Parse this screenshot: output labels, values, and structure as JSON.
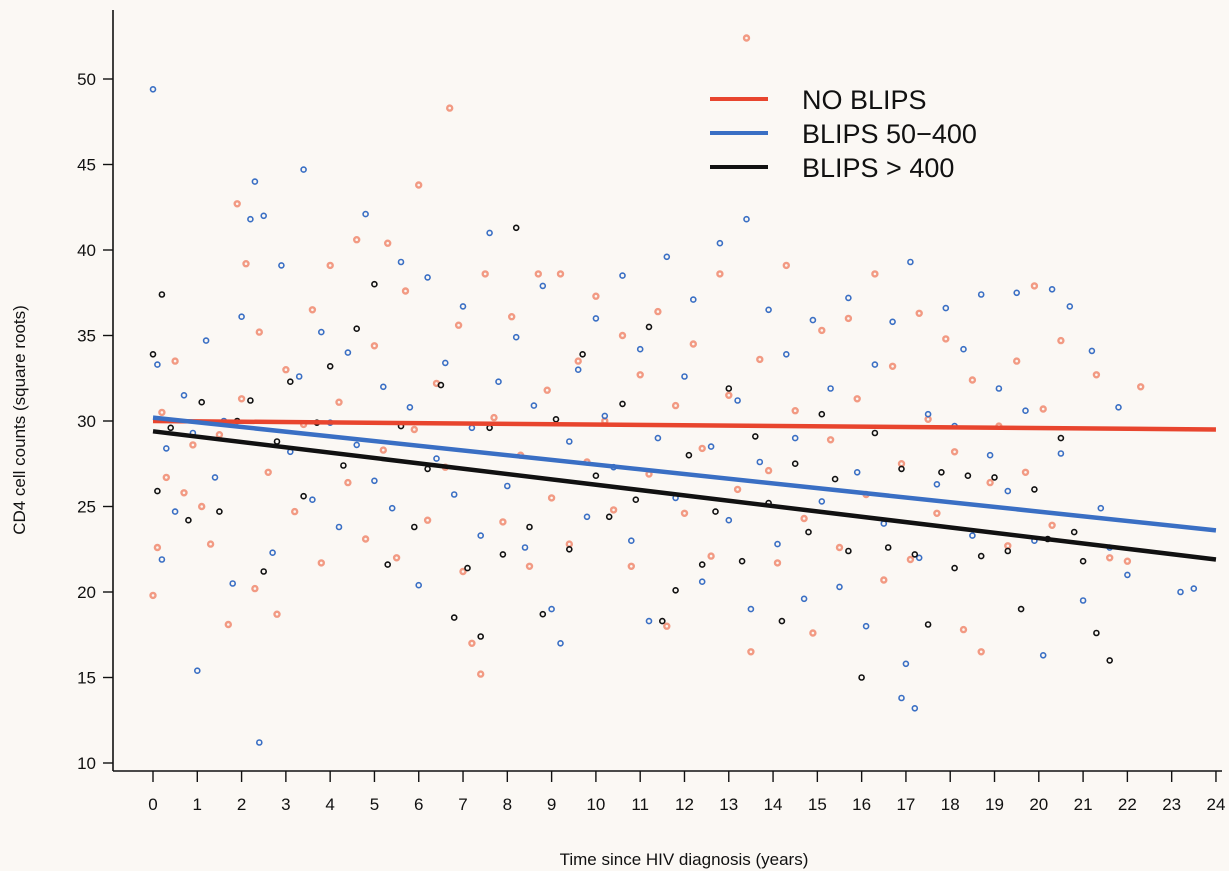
{
  "chart_data": {
    "type": "scatter",
    "title": "",
    "xlabel": "Time since HIV diagnosis (years)",
    "ylabel": "CD4 cell counts (square roots)",
    "xlim": [
      -0.5,
      24
    ],
    "ylim": [
      10,
      53
    ],
    "x_ticks": [
      0,
      1,
      2,
      3,
      4,
      5,
      6,
      7,
      8,
      9,
      10,
      11,
      12,
      13,
      14,
      15,
      16,
      17,
      18,
      19,
      20,
      21,
      22,
      23,
      24
    ],
    "y_ticks": [
      10,
      15,
      20,
      25,
      30,
      35,
      40,
      45,
      50
    ],
    "grid": false,
    "legend_position": "top-right",
    "series": [
      {
        "name": "NO BLIPS",
        "color": "#e8452e",
        "point_color": "#f08a6e",
        "trend": {
          "x": [
            0,
            24
          ],
          "y": [
            30.0,
            29.5
          ]
        },
        "points": [
          [
            0,
            19.8
          ],
          [
            0.1,
            22.6
          ],
          [
            0.2,
            30.5
          ],
          [
            0.3,
            26.7
          ],
          [
            0.5,
            33.5
          ],
          [
            0.7,
            25.8
          ],
          [
            0.9,
            28.6
          ],
          [
            1.1,
            25.0
          ],
          [
            1.3,
            22.8
          ],
          [
            1.5,
            29.2
          ],
          [
            1.7,
            18.1
          ],
          [
            1.9,
            42.7
          ],
          [
            2.0,
            31.3
          ],
          [
            2.1,
            39.2
          ],
          [
            2.3,
            20.2
          ],
          [
            2.4,
            35.2
          ],
          [
            2.6,
            27.0
          ],
          [
            2.8,
            18.7
          ],
          [
            3.0,
            33.0
          ],
          [
            3.2,
            24.7
          ],
          [
            3.4,
            29.8
          ],
          [
            3.6,
            36.5
          ],
          [
            3.8,
            21.7
          ],
          [
            4.0,
            39.1
          ],
          [
            4.2,
            31.1
          ],
          [
            4.4,
            26.4
          ],
          [
            4.6,
            40.6
          ],
          [
            4.8,
            23.1
          ],
          [
            5.0,
            34.4
          ],
          [
            5.2,
            28.3
          ],
          [
            5.3,
            40.4
          ],
          [
            5.5,
            22.0
          ],
          [
            5.7,
            37.6
          ],
          [
            5.9,
            29.5
          ],
          [
            6.0,
            43.8
          ],
          [
            6.2,
            24.2
          ],
          [
            6.4,
            32.2
          ],
          [
            6.6,
            27.3
          ],
          [
            6.7,
            48.3
          ],
          [
            6.9,
            35.6
          ],
          [
            7.0,
            21.2
          ],
          [
            7.2,
            17.0
          ],
          [
            7.4,
            15.2
          ],
          [
            7.5,
            38.6
          ],
          [
            7.7,
            30.2
          ],
          [
            7.9,
            24.1
          ],
          [
            8.1,
            36.1
          ],
          [
            8.3,
            28.0
          ],
          [
            8.5,
            21.5
          ],
          [
            8.7,
            38.6
          ],
          [
            8.9,
            31.8
          ],
          [
            9.0,
            25.5
          ],
          [
            9.2,
            38.6
          ],
          [
            9.4,
            22.8
          ],
          [
            9.6,
            33.5
          ],
          [
            9.8,
            27.6
          ],
          [
            10.0,
            37.3
          ],
          [
            10.2,
            30.0
          ],
          [
            10.4,
            24.8
          ],
          [
            10.6,
            35.0
          ],
          [
            10.8,
            21.5
          ],
          [
            11.0,
            32.7
          ],
          [
            11.2,
            26.9
          ],
          [
            11.4,
            36.4
          ],
          [
            11.6,
            18.0
          ],
          [
            11.8,
            30.9
          ],
          [
            12.0,
            24.6
          ],
          [
            12.2,
            34.5
          ],
          [
            12.4,
            28.4
          ],
          [
            12.6,
            22.1
          ],
          [
            12.8,
            38.6
          ],
          [
            13.0,
            31.5
          ],
          [
            13.2,
            26.0
          ],
          [
            13.4,
            52.4
          ],
          [
            13.5,
            16.5
          ],
          [
            13.7,
            33.6
          ],
          [
            13.9,
            27.1
          ],
          [
            14.1,
            21.7
          ],
          [
            14.3,
            39.1
          ],
          [
            14.5,
            30.6
          ],
          [
            14.7,
            24.3
          ],
          [
            14.9,
            17.6
          ],
          [
            15.1,
            35.3
          ],
          [
            15.3,
            28.9
          ],
          [
            15.5,
            22.6
          ],
          [
            15.7,
            36.0
          ],
          [
            15.9,
            31.3
          ],
          [
            16.1,
            25.7
          ],
          [
            16.3,
            38.6
          ],
          [
            16.5,
            20.7
          ],
          [
            16.7,
            33.2
          ],
          [
            16.9,
            27.5
          ],
          [
            17.1,
            21.9
          ],
          [
            17.3,
            36.3
          ],
          [
            17.5,
            30.1
          ],
          [
            17.7,
            24.6
          ],
          [
            17.9,
            34.8
          ],
          [
            18.1,
            28.2
          ],
          [
            18.3,
            17.8
          ],
          [
            18.5,
            32.4
          ],
          [
            18.7,
            16.5
          ],
          [
            18.9,
            26.4
          ],
          [
            19.1,
            29.7
          ],
          [
            19.3,
            22.7
          ],
          [
            19.5,
            33.5
          ],
          [
            19.7,
            27.0
          ],
          [
            19.9,
            37.9
          ],
          [
            20.1,
            30.7
          ],
          [
            20.3,
            23.9
          ],
          [
            20.5,
            34.7
          ],
          [
            21.3,
            32.7
          ],
          [
            21.6,
            22.0
          ],
          [
            22.0,
            21.8
          ],
          [
            22.3,
            32.0
          ]
        ]
      },
      {
        "name": "BLIPS 50−400",
        "color": "#3a6fc4",
        "point_color": "#3a6fc4",
        "trend": {
          "x": [
            0,
            24
          ],
          "y": [
            30.2,
            23.6
          ]
        },
        "points": [
          [
            0,
            49.4
          ],
          [
            0.1,
            33.3
          ],
          [
            0.2,
            21.9
          ],
          [
            0.3,
            28.4
          ],
          [
            0.5,
            24.7
          ],
          [
            0.7,
            31.5
          ],
          [
            0.9,
            29.3
          ],
          [
            1.0,
            15.4
          ],
          [
            1.2,
            34.7
          ],
          [
            1.4,
            26.7
          ],
          [
            1.6,
            30.0
          ],
          [
            1.8,
            20.5
          ],
          [
            2.0,
            36.1
          ],
          [
            2.2,
            41.8
          ],
          [
            2.3,
            44.0
          ],
          [
            2.4,
            11.2
          ],
          [
            2.5,
            42.0
          ],
          [
            2.7,
            22.3
          ],
          [
            2.9,
            39.1
          ],
          [
            3.1,
            28.2
          ],
          [
            3.3,
            32.6
          ],
          [
            3.4,
            44.7
          ],
          [
            3.6,
            25.4
          ],
          [
            3.8,
            35.2
          ],
          [
            4.0,
            29.9
          ],
          [
            4.2,
            23.8
          ],
          [
            4.4,
            34.0
          ],
          [
            4.6,
            28.6
          ],
          [
            4.8,
            42.1
          ],
          [
            5.0,
            26.5
          ],
          [
            5.2,
            32.0
          ],
          [
            5.4,
            24.9
          ],
          [
            5.6,
            39.3
          ],
          [
            5.8,
            30.8
          ],
          [
            6.0,
            20.4
          ],
          [
            6.2,
            38.4
          ],
          [
            6.4,
            27.8
          ],
          [
            6.6,
            33.4
          ],
          [
            6.8,
            25.7
          ],
          [
            7.0,
            36.7
          ],
          [
            7.2,
            29.6
          ],
          [
            7.4,
            23.3
          ],
          [
            7.6,
            41.0
          ],
          [
            7.8,
            32.3
          ],
          [
            8.0,
            26.2
          ],
          [
            8.2,
            34.9
          ],
          [
            8.4,
            22.6
          ],
          [
            8.6,
            30.9
          ],
          [
            8.8,
            37.9
          ],
          [
            9.0,
            19.0
          ],
          [
            9.2,
            17.0
          ],
          [
            9.4,
            28.8
          ],
          [
            9.6,
            33.0
          ],
          [
            9.8,
            24.4
          ],
          [
            10.0,
            36.0
          ],
          [
            10.2,
            30.3
          ],
          [
            10.4,
            27.3
          ],
          [
            10.6,
            38.5
          ],
          [
            10.8,
            23.0
          ],
          [
            11.0,
            34.2
          ],
          [
            11.2,
            18.3
          ],
          [
            11.4,
            29.0
          ],
          [
            11.6,
            39.6
          ],
          [
            11.8,
            25.5
          ],
          [
            12.0,
            32.6
          ],
          [
            12.2,
            37.1
          ],
          [
            12.4,
            20.6
          ],
          [
            12.6,
            28.5
          ],
          [
            12.8,
            40.4
          ],
          [
            13.0,
            24.2
          ],
          [
            13.2,
            31.2
          ],
          [
            13.4,
            41.8
          ],
          [
            13.5,
            19.0
          ],
          [
            13.7,
            27.6
          ],
          [
            13.9,
            36.5
          ],
          [
            14.1,
            22.8
          ],
          [
            14.3,
            33.9
          ],
          [
            14.5,
            29.0
          ],
          [
            14.7,
            19.6
          ],
          [
            14.9,
            35.9
          ],
          [
            15.1,
            25.3
          ],
          [
            15.3,
            31.9
          ],
          [
            15.5,
            20.3
          ],
          [
            15.7,
            37.2
          ],
          [
            15.9,
            27.0
          ],
          [
            16.1,
            18.0
          ],
          [
            16.3,
            33.3
          ],
          [
            16.5,
            24.0
          ],
          [
            16.7,
            35.8
          ],
          [
            16.9,
            13.8
          ],
          [
            17.0,
            15.8
          ],
          [
            17.1,
            39.3
          ],
          [
            17.2,
            13.2
          ],
          [
            17.3,
            22.0
          ],
          [
            17.5,
            30.4
          ],
          [
            17.7,
            26.3
          ],
          [
            17.9,
            36.6
          ],
          [
            18.1,
            29.7
          ],
          [
            18.3,
            34.2
          ],
          [
            18.5,
            23.3
          ],
          [
            18.7,
            37.4
          ],
          [
            18.9,
            28.0
          ],
          [
            19.1,
            31.9
          ],
          [
            19.3,
            25.9
          ],
          [
            19.5,
            37.5
          ],
          [
            19.7,
            30.6
          ],
          [
            19.9,
            23.0
          ],
          [
            20.1,
            16.3
          ],
          [
            20.3,
            37.7
          ],
          [
            20.5,
            28.1
          ],
          [
            20.7,
            36.7
          ],
          [
            21.0,
            19.5
          ],
          [
            21.2,
            34.1
          ],
          [
            21.4,
            24.9
          ],
          [
            21.6,
            22.6
          ],
          [
            21.8,
            30.8
          ],
          [
            22.0,
            21.0
          ],
          [
            23.2,
            20.0
          ],
          [
            23.5,
            20.2
          ]
        ]
      },
      {
        "name": "BLIPS > 400",
        "color": "#111111",
        "point_color": "#111111",
        "trend": {
          "x": [
            0,
            24
          ],
          "y": [
            29.4,
            21.9
          ]
        },
        "points": [
          [
            0,
            33.9
          ],
          [
            0.1,
            25.9
          ],
          [
            0.2,
            37.4
          ],
          [
            0.4,
            29.6
          ],
          [
            0.8,
            24.2
          ],
          [
            1.1,
            31.1
          ],
          [
            1.5,
            24.7
          ],
          [
            1.9,
            30.0
          ],
          [
            2.2,
            31.2
          ],
          [
            2.5,
            21.2
          ],
          [
            2.8,
            28.8
          ],
          [
            3.1,
            32.3
          ],
          [
            3.4,
            25.6
          ],
          [
            3.7,
            29.9
          ],
          [
            4.0,
            33.2
          ],
          [
            4.3,
            27.4
          ],
          [
            4.6,
            35.4
          ],
          [
            5.0,
            38.0
          ],
          [
            5.3,
            21.6
          ],
          [
            5.6,
            29.7
          ],
          [
            5.9,
            23.8
          ],
          [
            6.2,
            27.2
          ],
          [
            6.5,
            32.1
          ],
          [
            6.8,
            18.5
          ],
          [
            7.1,
            21.4
          ],
          [
            7.4,
            17.4
          ],
          [
            7.6,
            29.6
          ],
          [
            7.9,
            22.2
          ],
          [
            8.2,
            41.3
          ],
          [
            8.5,
            23.8
          ],
          [
            8.8,
            18.7
          ],
          [
            9.1,
            30.1
          ],
          [
            9.4,
            22.5
          ],
          [
            9.7,
            33.9
          ],
          [
            10.0,
            26.8
          ],
          [
            10.3,
            24.4
          ],
          [
            10.6,
            31.0
          ],
          [
            10.9,
            25.4
          ],
          [
            11.2,
            35.5
          ],
          [
            11.5,
            18.3
          ],
          [
            11.8,
            20.1
          ],
          [
            12.1,
            28.0
          ],
          [
            12.4,
            21.6
          ],
          [
            12.7,
            24.7
          ],
          [
            13.0,
            31.9
          ],
          [
            13.3,
            21.8
          ],
          [
            13.6,
            29.1
          ],
          [
            13.9,
            25.2
          ],
          [
            14.2,
            18.3
          ],
          [
            14.5,
            27.5
          ],
          [
            14.8,
            23.5
          ],
          [
            15.1,
            30.4
          ],
          [
            15.4,
            26.6
          ],
          [
            15.7,
            22.4
          ],
          [
            16.0,
            15.0
          ],
          [
            16.3,
            29.3
          ],
          [
            16.6,
            22.6
          ],
          [
            16.9,
            27.2
          ],
          [
            17.2,
            22.2
          ],
          [
            17.5,
            18.1
          ],
          [
            17.8,
            27.0
          ],
          [
            18.1,
            21.4
          ],
          [
            18.4,
            26.8
          ],
          [
            18.7,
            22.1
          ],
          [
            19.0,
            26.7
          ],
          [
            19.3,
            22.4
          ],
          [
            19.6,
            19.0
          ],
          [
            19.9,
            26.0
          ],
          [
            20.2,
            23.1
          ],
          [
            20.5,
            29.0
          ],
          [
            20.8,
            23.5
          ],
          [
            21.0,
            21.8
          ],
          [
            21.3,
            17.6
          ],
          [
            21.6,
            16.0
          ]
        ]
      }
    ]
  }
}
